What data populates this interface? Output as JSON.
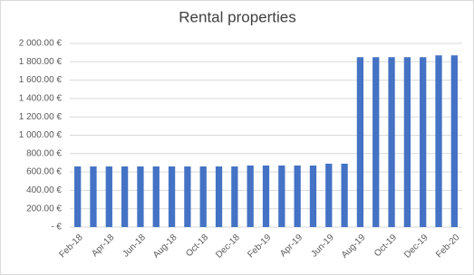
{
  "chart_data": {
    "type": "bar",
    "title": "Rental properties",
    "categories": [
      "Feb-18",
      null,
      "Apr-18",
      null,
      "Jun-18",
      null,
      "Aug-18",
      null,
      "Oct-18",
      null,
      "Dec-18",
      null,
      "Feb-19",
      null,
      "Apr-19",
      null,
      "Jun-19",
      null,
      "Aug-19",
      null,
      "Oct-19",
      null,
      "Dec-19",
      null,
      "Feb-20"
    ],
    "values": [
      660,
      660,
      660,
      660,
      660,
      660,
      660,
      660,
      660,
      660,
      660,
      670,
      670,
      670,
      670,
      670,
      690,
      690,
      1850,
      1850,
      1850,
      1850,
      1850,
      1870,
      1870
    ],
    "color": "#4472c4",
    "ylim": [
      0,
      2000
    ],
    "yticks": [
      {
        "value": 0,
        "label": "-   €"
      },
      {
        "value": 200,
        "label": "200.00 €"
      },
      {
        "value": 400,
        "label": "400.00 €"
      },
      {
        "value": 600,
        "label": "600.00 €"
      },
      {
        "value": 800,
        "label": "800.00 €"
      },
      {
        "value": 1000,
        "label": "1 000.00 €"
      },
      {
        "value": 1200,
        "label": "1 200.00 €"
      },
      {
        "value": 1400,
        "label": "1 400.00 €"
      },
      {
        "value": 1600,
        "label": "1 600.00 €"
      },
      {
        "value": 1800,
        "label": "1 800.00 €"
      },
      {
        "value": 2000,
        "label": "2 000.00 €"
      }
    ],
    "grid": true
  }
}
